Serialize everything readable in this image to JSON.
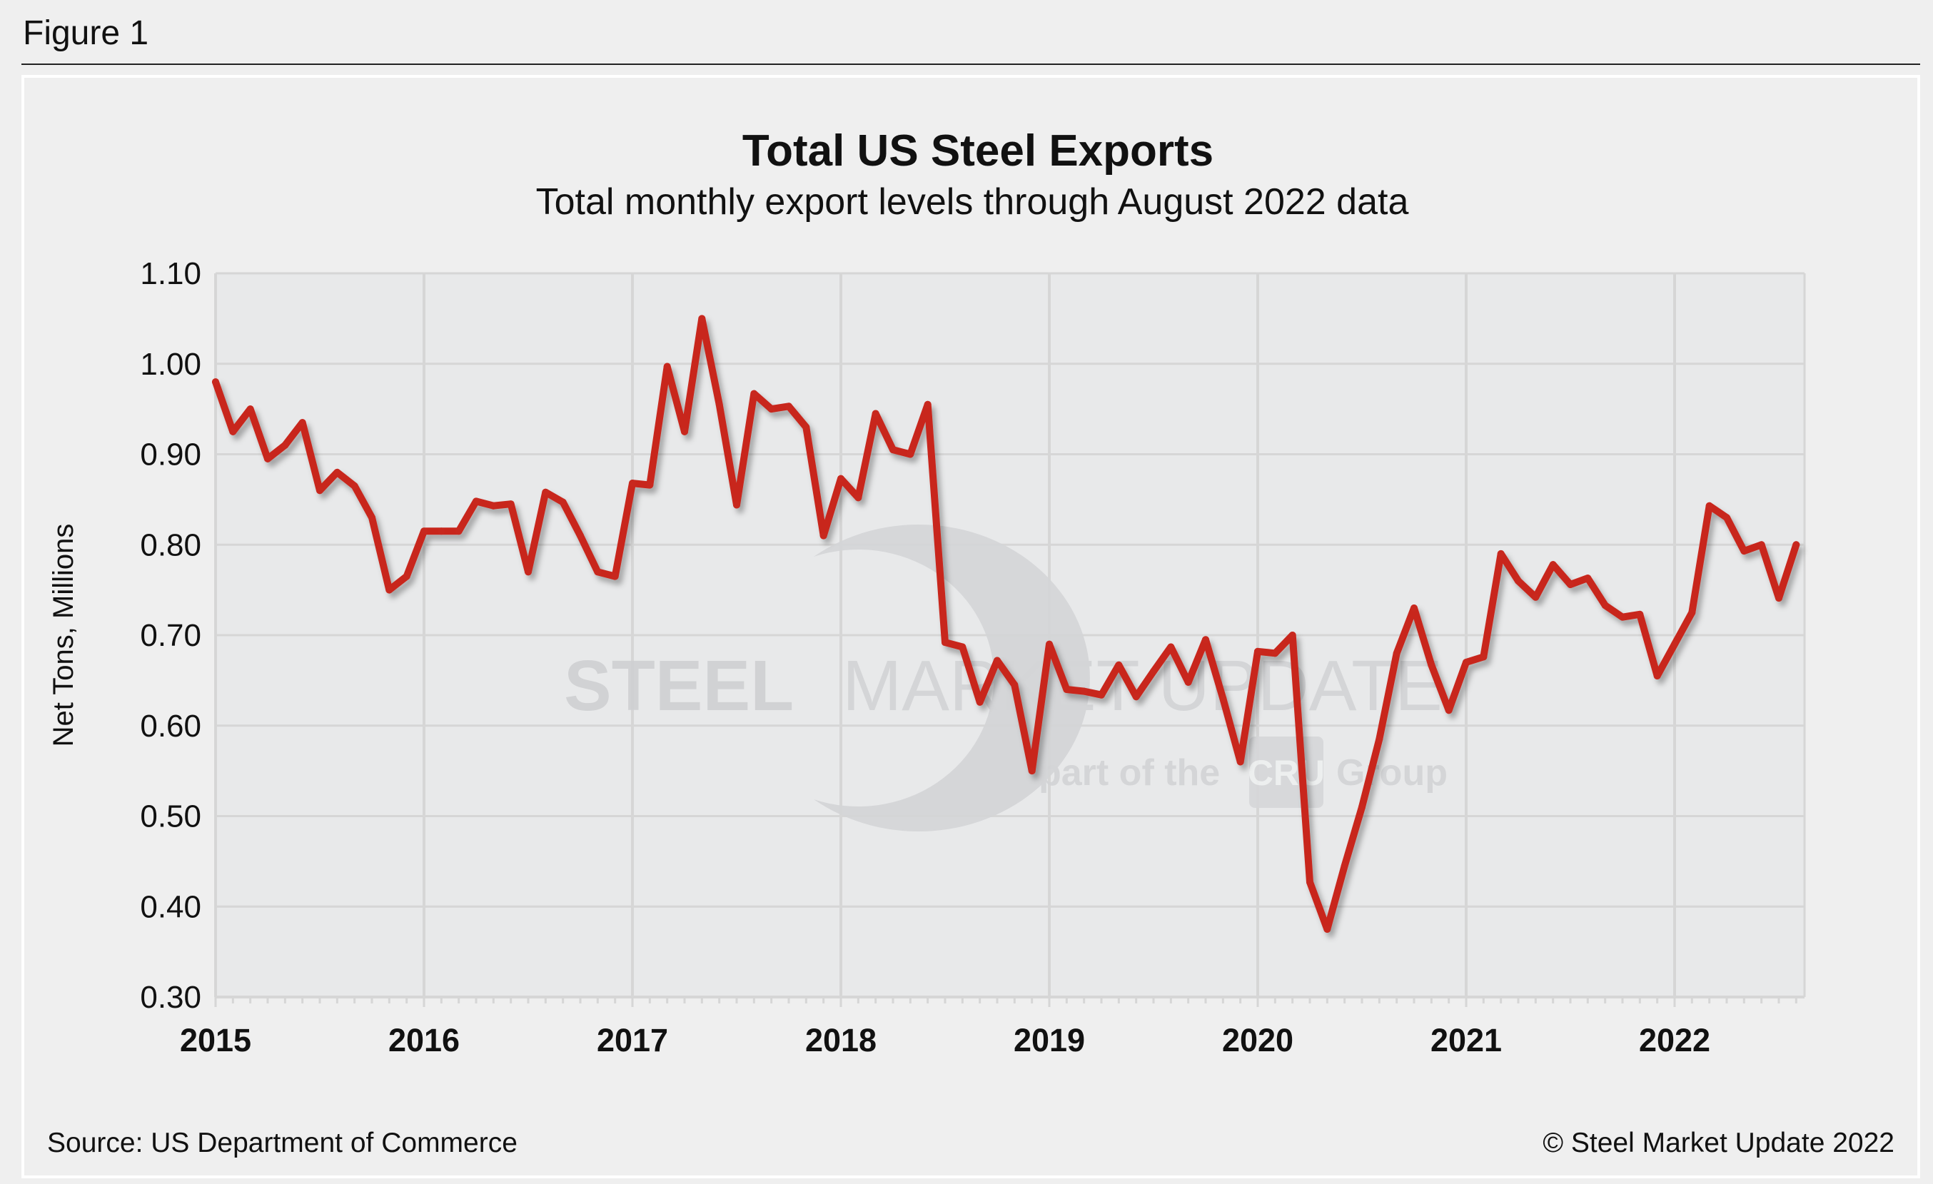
{
  "figure_label": "Figure 1",
  "source": "Source: US Department of Commerce",
  "copyright": "© Steel Market Update 2022",
  "watermark": {
    "main_bold": "STEEL",
    "main_light": "MARKET UPDATE",
    "sub_left": "part of the",
    "sub_logo": "CRU",
    "sub_right": "Group"
  },
  "colors": {
    "line": "#c8281e",
    "plot_bg": "#e8e9ea",
    "grid": "#d6d6d6",
    "frame_bg": "#efefef"
  },
  "chart_data": {
    "type": "line",
    "title": "Total US Steel Exports",
    "subtitle": "Total monthly export levels through August 2022 data",
    "xlabel": "",
    "ylabel": "Net Tons, Millions",
    "ylim": [
      0.3,
      1.1
    ],
    "yticks": [
      "0.30",
      "0.40",
      "0.50",
      "0.60",
      "0.70",
      "0.80",
      "0.90",
      "1.00",
      "1.10"
    ],
    "xticks": [
      "2015",
      "2016",
      "2017",
      "2018",
      "2019",
      "2020",
      "2021",
      "2022"
    ],
    "x_start": "2015-01",
    "x_end": "2022-08",
    "frequency": "monthly",
    "grid": true,
    "series": [
      {
        "values": [
          0.98,
          0.925,
          0.95,
          0.895,
          0.91,
          0.935,
          0.86,
          0.88,
          0.865,
          0.83,
          0.75,
          0.765,
          0.815,
          0.815,
          0.815,
          0.848,
          0.843,
          0.845,
          0.77,
          0.858,
          0.847,
          0.81,
          0.77,
          0.765,
          0.868,
          0.866,
          0.997,
          0.925,
          1.05,
          0.955,
          0.844,
          0.967,
          0.95,
          0.953,
          0.93,
          0.81,
          0.873,
          0.852,
          0.945,
          0.905,
          0.9,
          0.955,
          0.692,
          0.687,
          0.626,
          0.672,
          0.645,
          0.55,
          0.69,
          0.64,
          0.638,
          0.634,
          0.667,
          0.632,
          0.66,
          0.687,
          0.648,
          0.695,
          0.63,
          0.56,
          0.682,
          0.68,
          0.7,
          0.427,
          0.375,
          0.445,
          0.51,
          0.585,
          0.68,
          0.73,
          0.667,
          0.617,
          0.67,
          0.676,
          0.79,
          0.76,
          0.742,
          0.778,
          0.756,
          0.763,
          0.733,
          0.72,
          0.723,
          0.655,
          0.69,
          0.725,
          0.843,
          0.83,
          0.793,
          0.8,
          0.741,
          0.8
        ]
      }
    ]
  }
}
